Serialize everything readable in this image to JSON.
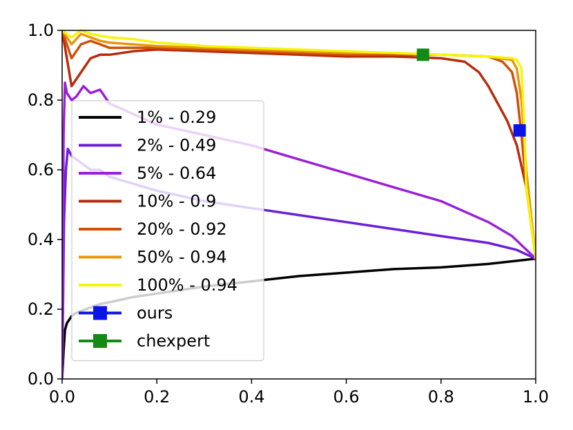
{
  "chart_data": {
    "type": "line",
    "title": "",
    "xlabel": "",
    "ylabel": "",
    "xlim": [
      0.0,
      1.0
    ],
    "ylim": [
      0.0,
      1.0
    ],
    "xticks": [
      "0.0",
      "0.2",
      "0.4",
      "0.6",
      "0.8",
      "1.0"
    ],
    "yticks": [
      "0.0",
      "0.2",
      "0.4",
      "0.6",
      "0.8",
      "1.0"
    ],
    "grid": false,
    "legend_position": "left",
    "series": [
      {
        "name": "1% - 0.29",
        "color": "#000000",
        "x": [
          0.0,
          0.003,
          0.006,
          0.01,
          0.015,
          0.02,
          0.03,
          0.05,
          0.08,
          0.1,
          0.15,
          0.2,
          0.3,
          0.4,
          0.5,
          0.6,
          0.7,
          0.8,
          0.9,
          1.0
        ],
        "y": [
          0.0,
          0.08,
          0.14,
          0.16,
          0.17,
          0.18,
          0.19,
          0.2,
          0.215,
          0.22,
          0.235,
          0.245,
          0.265,
          0.28,
          0.295,
          0.305,
          0.315,
          0.32,
          0.33,
          0.345
        ]
      },
      {
        "name": "2% - 0.49",
        "color": "#6a1fd6",
        "x": [
          0.0,
          0.004,
          0.008,
          0.012,
          0.02,
          0.04,
          0.06,
          0.08,
          0.1,
          0.15,
          0.2,
          0.3,
          0.4,
          0.5,
          0.6,
          0.7,
          0.8,
          0.9,
          0.96,
          1.0
        ],
        "y": [
          0.0,
          0.45,
          0.6,
          0.66,
          0.64,
          0.62,
          0.6,
          0.6,
          0.58,
          0.56,
          0.54,
          0.51,
          0.49,
          0.47,
          0.45,
          0.43,
          0.41,
          0.39,
          0.37,
          0.345
        ]
      },
      {
        "name": "5% - 0.64",
        "color": "#9b1fd6",
        "x": [
          0.0,
          0.003,
          0.006,
          0.01,
          0.02,
          0.03,
          0.045,
          0.06,
          0.08,
          0.1,
          0.15,
          0.2,
          0.3,
          0.4,
          0.5,
          0.6,
          0.7,
          0.8,
          0.9,
          0.95,
          1.0
        ],
        "y": [
          0.0,
          0.7,
          0.85,
          0.82,
          0.8,
          0.81,
          0.84,
          0.82,
          0.83,
          0.79,
          0.76,
          0.73,
          0.7,
          0.67,
          0.63,
          0.59,
          0.55,
          0.51,
          0.45,
          0.41,
          0.345
        ]
      },
      {
        "name": "10% - 0.9",
        "color": "#b82a0a",
        "x": [
          0.0,
          0.02,
          0.04,
          0.06,
          0.08,
          0.1,
          0.15,
          0.2,
          0.3,
          0.4,
          0.5,
          0.6,
          0.7,
          0.8,
          0.85,
          0.88,
          0.9,
          0.92,
          0.94,
          0.96,
          0.98,
          1.0
        ],
        "y": [
          1.0,
          0.84,
          0.88,
          0.92,
          0.93,
          0.93,
          0.94,
          0.945,
          0.94,
          0.935,
          0.93,
          0.925,
          0.925,
          0.92,
          0.91,
          0.88,
          0.84,
          0.79,
          0.74,
          0.67,
          0.55,
          0.345
        ]
      },
      {
        "name": "20% - 0.92",
        "color": "#d0500a",
        "x": [
          0.0,
          0.02,
          0.04,
          0.06,
          0.08,
          0.1,
          0.15,
          0.2,
          0.3,
          0.4,
          0.5,
          0.6,
          0.7,
          0.8,
          0.9,
          0.93,
          0.95,
          0.96,
          0.97,
          0.98,
          1.0
        ],
        "y": [
          1.0,
          0.92,
          0.96,
          0.97,
          0.96,
          0.95,
          0.95,
          0.95,
          0.945,
          0.94,
          0.935,
          0.93,
          0.93,
          0.93,
          0.925,
          0.91,
          0.88,
          0.82,
          0.7,
          0.55,
          0.345
        ]
      },
      {
        "name": "50% - 0.94",
        "color": "#e8960a",
        "x": [
          0.0,
          0.02,
          0.04,
          0.06,
          0.08,
          0.1,
          0.15,
          0.2,
          0.3,
          0.4,
          0.5,
          0.6,
          0.7,
          0.8,
          0.9,
          0.95,
          0.96,
          0.97,
          0.98,
          1.0
        ],
        "y": [
          1.0,
          0.96,
          0.99,
          0.98,
          0.97,
          0.965,
          0.96,
          0.955,
          0.95,
          0.945,
          0.94,
          0.935,
          0.935,
          0.93,
          0.925,
          0.915,
          0.89,
          0.8,
          0.6,
          0.345
        ]
      },
      {
        "name": "100% - 0.94",
        "color": "#f5f50a",
        "x": [
          0.0,
          0.02,
          0.04,
          0.06,
          0.08,
          0.1,
          0.15,
          0.2,
          0.3,
          0.4,
          0.5,
          0.6,
          0.7,
          0.8,
          0.9,
          0.95,
          0.96,
          0.97,
          0.975,
          0.98,
          1.0
        ],
        "y": [
          1.0,
          0.98,
          1.0,
          0.99,
          0.985,
          0.98,
          0.975,
          0.965,
          0.955,
          0.95,
          0.945,
          0.94,
          0.935,
          0.93,
          0.925,
          0.92,
          0.915,
          0.89,
          0.75,
          0.55,
          0.345
        ]
      }
    ],
    "markers": [
      {
        "name": "ours",
        "color": "#0a14e6",
        "x": 0.966,
        "y": 0.713
      },
      {
        "name": "chexpert",
        "color": "#138a13",
        "x": 0.762,
        "y": 0.93
      }
    ]
  }
}
